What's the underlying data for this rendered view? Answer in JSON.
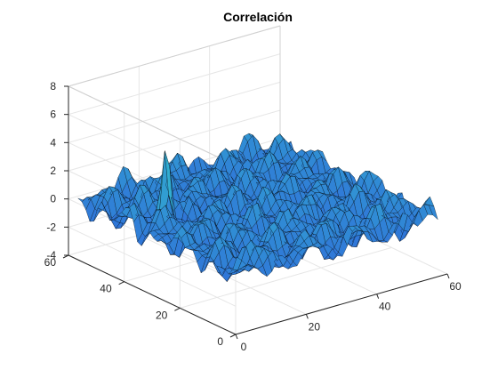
{
  "chart_data": {
    "type": "surface",
    "title": "Correlación",
    "xlabel": "",
    "ylabel": "",
    "zlabel": "",
    "x_ticks": [
      "0",
      "20",
      "40",
      "60"
    ],
    "y_ticks": [
      "0",
      "20",
      "40",
      "60"
    ],
    "z_ticks": [
      "-4",
      "-2",
      "0",
      "2",
      "4",
      "6",
      "8"
    ],
    "xlim": [
      0,
      60
    ],
    "ylim": [
      0,
      60
    ],
    "zlim": [
      -4,
      8
    ],
    "grid": true,
    "grid_size": [
      41,
      41
    ],
    "peak": {
      "x": 12,
      "y": 40,
      "z": 6.2
    },
    "trough": {
      "x": 14,
      "y": 38,
      "z": -3.8
    },
    "background_range_z": [
      -1.5,
      1.5
    ],
    "colormap": "winter/cool blue",
    "colors": {
      "surface_low": "#2f6fd9",
      "surface_high": "#34d9c9",
      "edge": "#000000",
      "axis": "#262626",
      "grid": "#e6e6e6"
    }
  }
}
